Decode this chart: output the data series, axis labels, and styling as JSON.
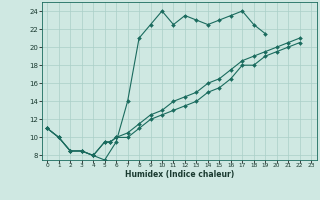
{
  "xlabel": "Humidex (Indice chaleur)",
  "bg_color": "#cfe8e2",
  "line_color": "#1a6b5e",
  "grid_color": "#aacfc8",
  "xlim": [
    -0.5,
    23.5
  ],
  "ylim": [
    7.5,
    25.0
  ],
  "xticks": [
    0,
    1,
    2,
    3,
    4,
    5,
    6,
    7,
    8,
    9,
    10,
    11,
    12,
    13,
    14,
    15,
    16,
    17,
    18,
    19,
    20,
    21,
    22,
    23
  ],
  "yticks": [
    8,
    10,
    12,
    14,
    16,
    18,
    20,
    22,
    24
  ],
  "curve1_x": [
    0,
    1,
    2,
    3,
    4,
    5,
    6,
    7,
    8,
    9,
    10,
    11,
    12,
    13,
    14,
    15,
    16,
    17,
    18,
    19
  ],
  "curve1_y": [
    11,
    10,
    8.5,
    8.5,
    8,
    7.5,
    9.5,
    14,
    21,
    22.5,
    24,
    22.5,
    23.5,
    23,
    22.5,
    23,
    23.5,
    24,
    22.5,
    21.5
  ],
  "curve2_x": [
    0,
    1,
    2,
    3,
    4,
    5,
    5.5,
    6,
    7,
    8,
    9,
    10,
    11,
    12,
    13,
    14,
    15,
    16,
    17,
    18,
    19,
    20,
    21,
    22
  ],
  "curve2_y": [
    11,
    10,
    8.5,
    8.5,
    8,
    9.5,
    9.5,
    10,
    10,
    11,
    12,
    12.5,
    13,
    13.5,
    14,
    15,
    15.5,
    16.5,
    18,
    18,
    19,
    19.5,
    20,
    20.5
  ],
  "curve3_x": [
    0,
    1,
    2,
    3,
    4,
    5,
    5.5,
    6,
    7,
    8,
    9,
    10,
    11,
    12,
    13,
    14,
    15,
    16,
    17,
    18,
    19,
    20,
    21,
    22
  ],
  "curve3_y": [
    11,
    10,
    8.5,
    8.5,
    8,
    9.5,
    9.5,
    10,
    10.5,
    11.5,
    12.5,
    13,
    14,
    14.5,
    15,
    16,
    16.5,
    17.5,
    18.5,
    19,
    19.5,
    20,
    20.5,
    21
  ]
}
